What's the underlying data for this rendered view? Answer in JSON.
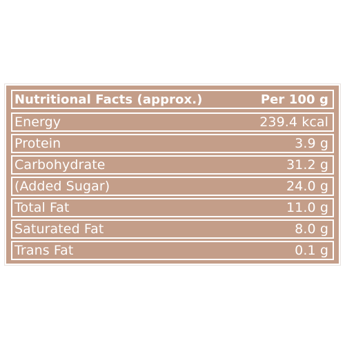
{
  "table": {
    "header": {
      "label": "Nutritional Facts (approx.)",
      "value": "Per 100 g"
    },
    "rows": [
      {
        "label": "Energy",
        "value": "239.4 kcal"
      },
      {
        "label": "Protein",
        "value": "3.9 g"
      },
      {
        "label": "Carbohydrate",
        "value": "31.2 g"
      },
      {
        "label": "(Added Sugar)",
        "value": "24.0 g"
      },
      {
        "label": "Total Fat",
        "value": "11.0 g"
      },
      {
        "label": "Saturated Fat",
        "value": "8.0 g"
      },
      {
        "label": "Trans Fat",
        "value": "0.1 g"
      }
    ]
  },
  "colors": {
    "panel": "#c49e89",
    "text": "#ffffff"
  }
}
